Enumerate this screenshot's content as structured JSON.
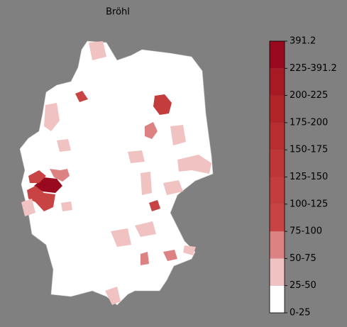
{
  "title": "Bröhl",
  "colorbar": {
    "labels": [
      "0-25",
      "25-50",
      "50-75",
      "75-100",
      "100-125",
      "125-150",
      "150-175",
      "175-200",
      "200-225",
      "225-391.2",
      "391.2"
    ],
    "colors": [
      "#ffffff",
      "#f0c2c2",
      "#dc8282",
      "#c84444",
      "#c43d3d",
      "#bf3636",
      "#b82e30",
      "#b02428",
      "#a71a24",
      "#9a0a1e"
    ]
  }
}
